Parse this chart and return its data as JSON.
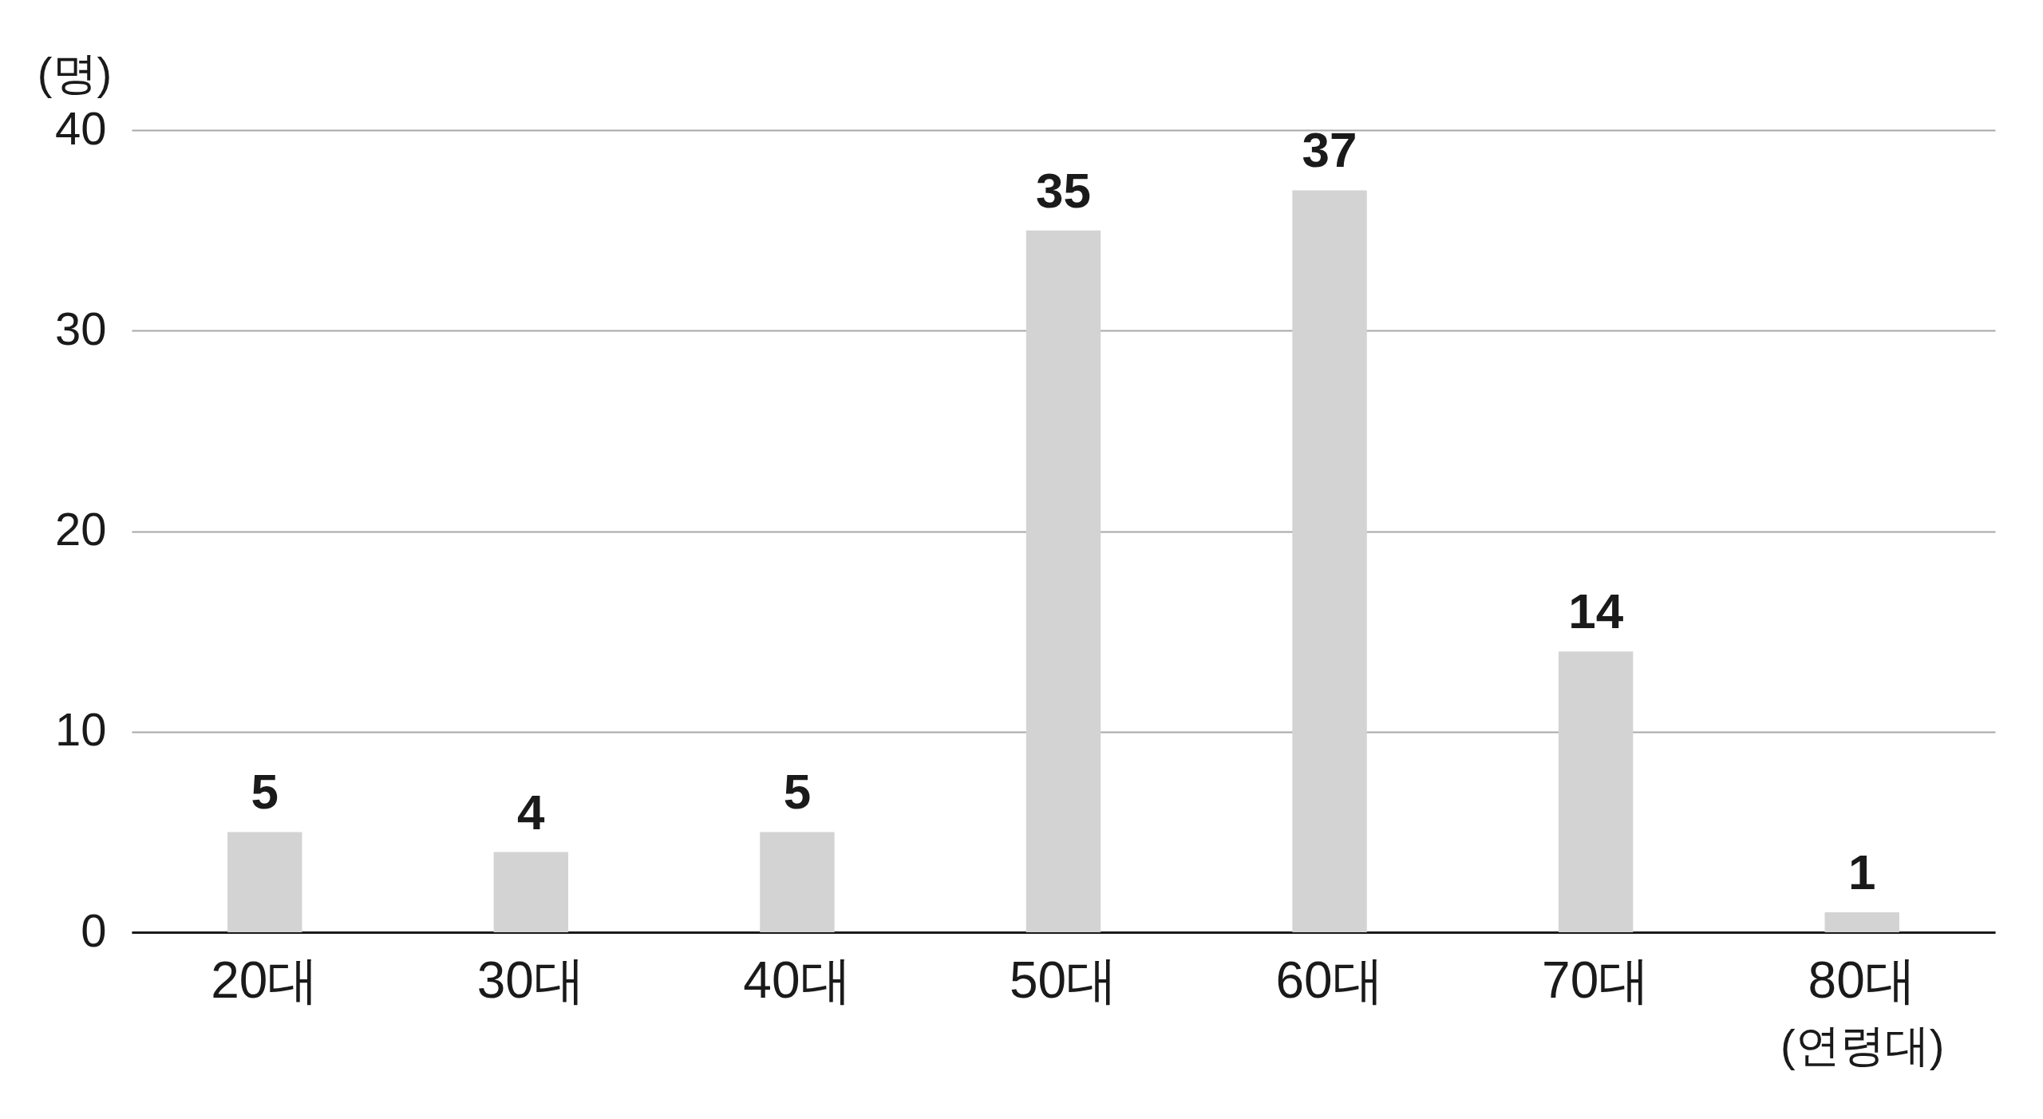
{
  "chart_data": {
    "type": "bar",
    "ylabel": "(명)",
    "xlabel": "(연령대)",
    "categories": [
      "20대",
      "30대",
      "40대",
      "50대",
      "60대",
      "70대",
      "80대"
    ],
    "values": [
      5,
      4,
      5,
      35,
      37,
      14,
      1
    ],
    "color": "#d3d3d3",
    "ylim": [
      0,
      40
    ],
    "yticks": [
      0,
      10,
      20,
      30,
      40
    ],
    "grid": "y",
    "data_labels": true
  }
}
